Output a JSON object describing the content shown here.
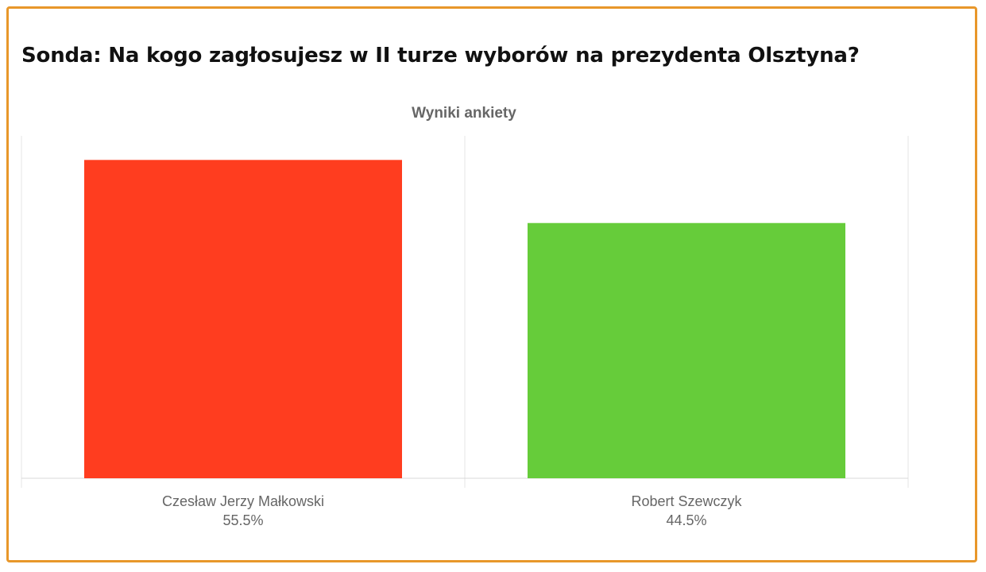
{
  "poll": {
    "title": "Sonda: Na kogo zagłosujesz w II turze wyborów na prezydenta Olsztyna?"
  },
  "colors": {
    "frame": "#e8972a",
    "grid": "#e5e5e5",
    "label": "#666666",
    "title": "#111111"
  },
  "chart_data": {
    "type": "bar",
    "title": "Wyniki ankiety",
    "xlabel": "",
    "ylabel": "",
    "categories": [
      "Czesław Jerzy Małkowski",
      "Robert Szewczyk"
    ],
    "values": [
      55.5,
      44.5
    ],
    "value_labels": [
      "55.5%",
      "44.5%"
    ],
    "colors": [
      "#ff3d1f",
      "#66cc3a"
    ],
    "ylim": [
      0,
      59.7
    ],
    "grid": true,
    "legend": "none"
  }
}
